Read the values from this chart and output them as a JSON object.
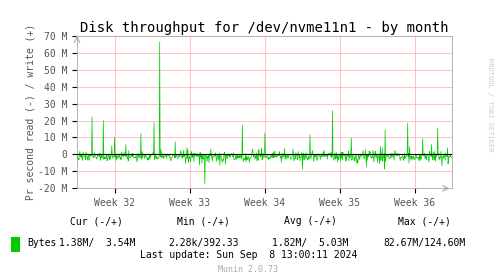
{
  "title": "Disk throughput for /dev/nvme11n1 - by month",
  "ylabel": "Pr second read (-) / write (+)",
  "background_color": "#ffffff",
  "plot_bg_color": "#ffffff",
  "grid_color": "#ffaaaa",
  "line_color": "#00cc00",
  "zero_line_color": "#000000",
  "border_color": "#aaaaaa",
  "ylim": [
    -20000000,
    70000000
  ],
  "yticks": [
    -20000000,
    -10000000,
    0,
    10000000,
    20000000,
    30000000,
    40000000,
    50000000,
    60000000,
    70000000
  ],
  "ytick_labels": [
    "-20 M",
    "-10 M",
    "0",
    "10 M",
    "20 M",
    "30 M",
    "40 M",
    "50 M",
    "60 M",
    "70 M"
  ],
  "xtick_labels": [
    "Week 32",
    "Week 33",
    "Week 34",
    "Week 35",
    "Week 36"
  ],
  "legend_label": "Bytes",
  "legend_color": "#00cc00",
  "cur_label": "Cur (-/+)",
  "min_label": "Min (-/+)",
  "avg_label": "Avg (-/+)",
  "max_label": "Max (-/+)",
  "cur_val": "1.38M/  3.54M",
  "min_val": "2.28k/392.33",
  "avg_val": "1.82M/  5.03M",
  "max_val": "82.67M/124.60M",
  "last_update": "Last update: Sun Sep  8 13:00:11 2024",
  "munin_label": "Munin 2.0.73",
  "rrdtool_label": "RRDTOOL / TOBI OETIKER",
  "title_fontsize": 10,
  "axis_fontsize": 7,
  "tick_fontsize": 7,
  "footer_fontsize": 7,
  "munin_fontsize": 6,
  "rrdtool_fontsize": 5
}
